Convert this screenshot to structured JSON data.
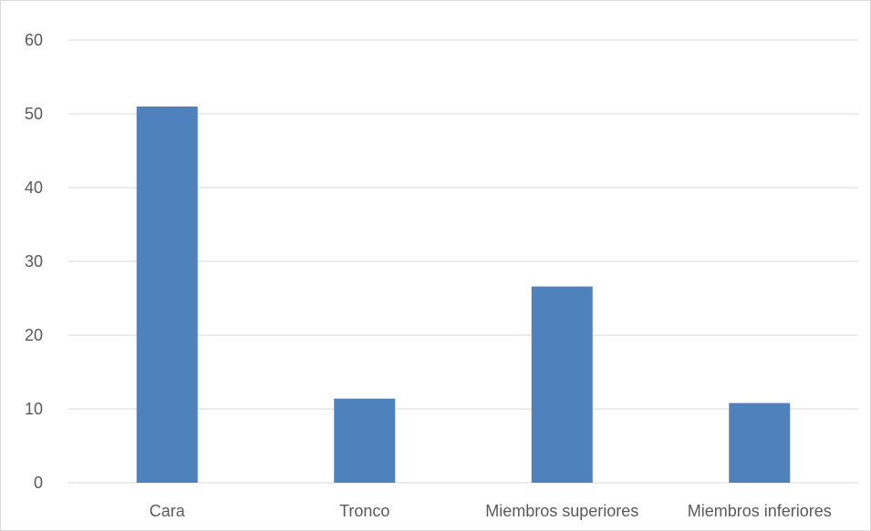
{
  "chart_data": {
    "type": "bar",
    "title": "",
    "xlabel": "",
    "ylabel": "",
    "categories": [
      "Cara",
      "Tronco",
      "Miembros superiores",
      "Miembros inferiores"
    ],
    "values": [
      51,
      11.4,
      26.6,
      10.8
    ],
    "ylim": [
      0,
      60
    ],
    "yticks": [
      "0",
      "10",
      "20",
      "30",
      "40",
      "50",
      "60"
    ],
    "grid": true,
    "legend": "none",
    "colors": {
      "bar": "#4f81bd",
      "grid": "#d9d9d9",
      "text": "#595959"
    }
  }
}
